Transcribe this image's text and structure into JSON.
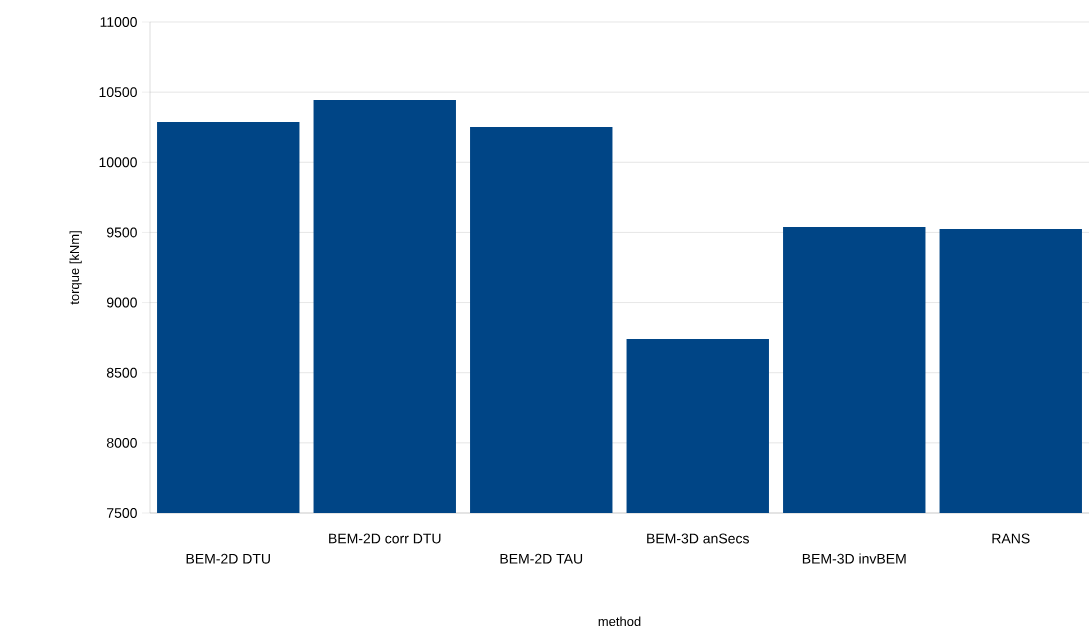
{
  "chart_data": {
    "type": "bar",
    "xlabel": "method",
    "ylabel": "torque [kNm]",
    "categories": [
      "BEM-2D DTU",
      "BEM-2D corr DTU",
      "BEM-2D TAU",
      "BEM-3D anSecs",
      "BEM-3D invBEM",
      "RANS"
    ],
    "values": [
      10287,
      10444,
      10252,
      8740,
      9539,
      9524
    ],
    "color": "#004586",
    "ylim": [
      7500,
      11000
    ],
    "yticks": [
      7500,
      8000,
      8500,
      9000,
      9500,
      10000,
      10500,
      11000
    ],
    "grid": "y"
  }
}
